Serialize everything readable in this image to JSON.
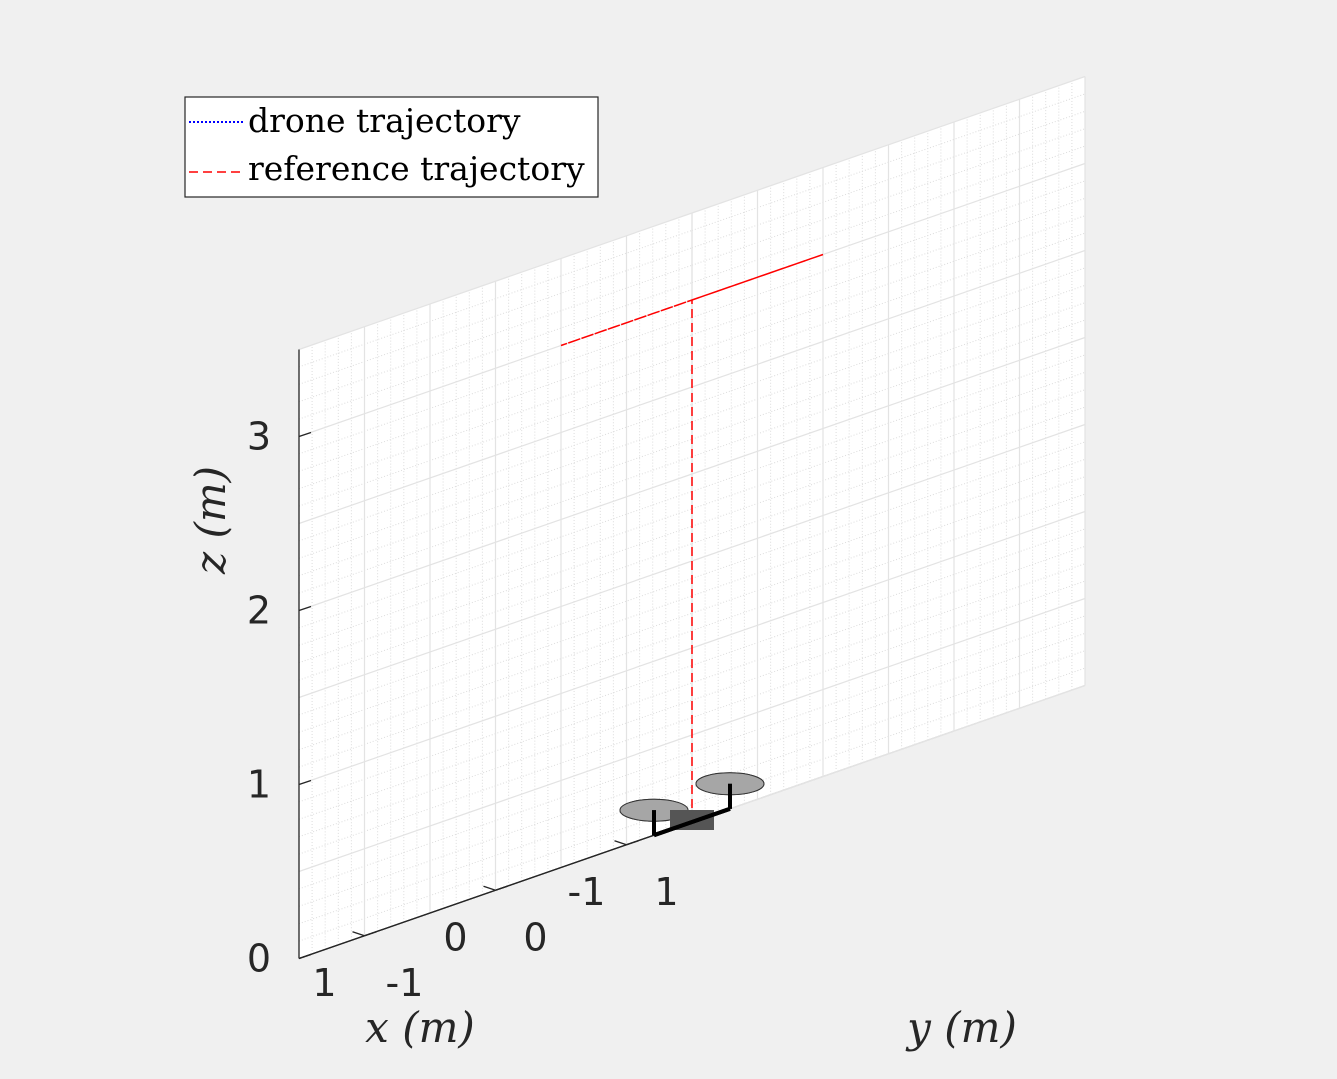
{
  "chart_data": {
    "type": "line",
    "projection": "3d",
    "xlabel": "x (m)",
    "ylabel": "y (m)",
    "zlabel": "z (m)",
    "xlim": [
      -1.5,
      1.5
    ],
    "ylim": [
      -1.5,
      1.5
    ],
    "zlim": [
      0,
      3.5
    ],
    "x_ticks": [
      "-1",
      "0",
      "1"
    ],
    "y_ticks": [
      "-1",
      "0",
      "1"
    ],
    "z_ticks": [
      "0",
      "1",
      "2",
      "3"
    ],
    "grid": true,
    "minor_grid": true,
    "legend_position": "top-left",
    "series": [
      {
        "name": "drone trajectory",
        "style": "dotted",
        "color": "#0000ff",
        "points": []
      },
      {
        "name": "reference trajectory",
        "style": "dashed",
        "color": "#ff0000",
        "points": [
          {
            "x": 0,
            "y": 0,
            "z": 0
          },
          {
            "x": 0,
            "y": 0,
            "z": 3
          },
          {
            "x": 1,
            "y": 0,
            "z": 3
          },
          {
            "x": 1,
            "y": 1,
            "z": 3
          },
          {
            "x": 0,
            "y": 1,
            "z": 3
          },
          {
            "x": 0,
            "y": 0,
            "z": 3
          }
        ]
      }
    ],
    "drone": {
      "x": 0,
      "y": 0,
      "z": 0,
      "arm_color": "#000000",
      "rotor_color": "#a6a6a6",
      "body_color": "#555555"
    }
  }
}
